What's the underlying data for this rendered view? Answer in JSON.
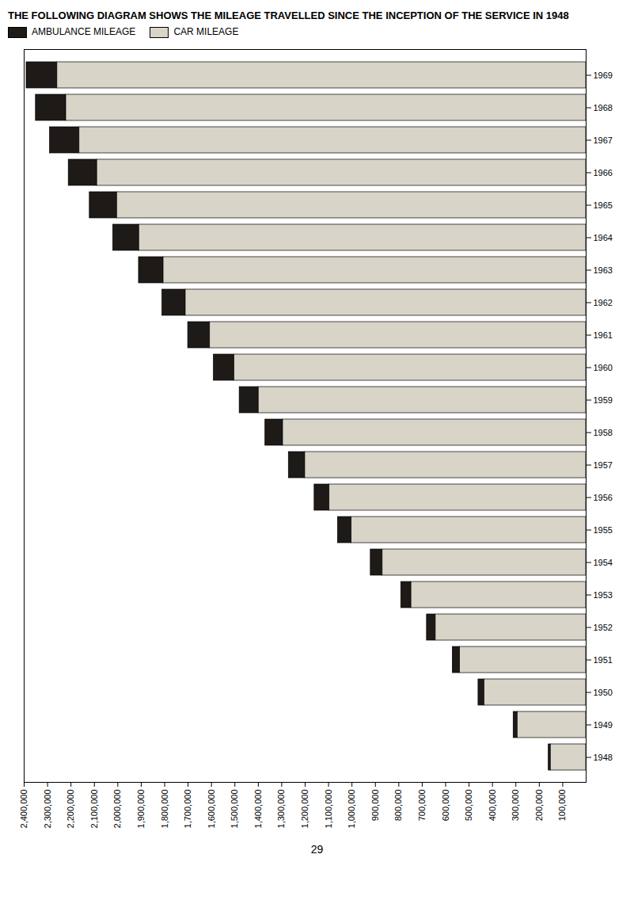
{
  "chart_data": {
    "type": "bar",
    "orientation": "horizontal",
    "stacked": true,
    "title": "THE FOLLOWING DIAGRAM SHOWS THE MILEAGE TRAVELLED SINCE THE INCEPTION OF THE SERVICE IN 1948",
    "categories": [
      "1948",
      "1949",
      "1950",
      "1951",
      "1952",
      "1953",
      "1954",
      "1955",
      "1956",
      "1957",
      "1958",
      "1959",
      "1960",
      "1961",
      "1962",
      "1963",
      "1964",
      "1965",
      "1966",
      "1967",
      "1968",
      "1969"
    ],
    "series": [
      {
        "name": "AMBULANCE MILEAGE",
        "color": "#1e1a17",
        "values": [
          8800,
          17050,
          25300,
          31350,
          37400,
          43450,
          50600,
          58300,
          63800,
          69850,
          75350,
          81400,
          87450,
          93500,
          99550,
          105050,
          111100,
          116600,
          121550,
          125950,
          129250,
          131450
        ]
      },
      {
        "name": "CAR MILEAGE",
        "color": "#d8d4c8",
        "values": [
          151200,
          292950,
          434700,
          538650,
          642600,
          746550,
          869400,
          1001700,
          1096200,
          1200150,
          1294650,
          1398600,
          1502550,
          1606500,
          1710450,
          1804950,
          1908900,
          2003400,
          2088450,
          2164050,
          2220750,
          2258550
        ]
      }
    ],
    "xlim": [
      2400000,
      0
    ],
    "xticks": [
      {
        "value": 100000,
        "label": "100,000"
      },
      {
        "value": 200000,
        "label": "200,000"
      },
      {
        "value": 300000,
        "label": "300,000"
      },
      {
        "value": 400000,
        "label": "400,000"
      },
      {
        "value": 500000,
        "label": "500,000"
      },
      {
        "value": 600000,
        "label": "600,000"
      },
      {
        "value": 700000,
        "label": "700,000"
      },
      {
        "value": 800000,
        "label": "800,000"
      },
      {
        "value": 900000,
        "label": "900,000"
      },
      {
        "value": 1000000,
        "label": "1,000,000"
      },
      {
        "value": 1100000,
        "label": "1,100,000"
      },
      {
        "value": 1200000,
        "label": "1,200,000"
      },
      {
        "value": 1300000,
        "label": "1,300,000"
      },
      {
        "value": 1400000,
        "label": "1,400,000"
      },
      {
        "value": 1500000,
        "label": "1,500,000"
      },
      {
        "value": 1600000,
        "label": "1,600,000"
      },
      {
        "value": 1700000,
        "label": "1,700,000"
      },
      {
        "value": 1800000,
        "label": "1,800,000"
      },
      {
        "value": 1900000,
        "label": "1,900,000"
      },
      {
        "value": 2000000,
        "label": "2,000,000"
      },
      {
        "value": 2100000,
        "label": "2,100,000"
      },
      {
        "value": 2200000,
        "label": "2,200,000"
      },
      {
        "value": 2300000,
        "label": "2,300,000"
      },
      {
        "value": 2400000,
        "label": "2,400,000"
      }
    ],
    "grid": false,
    "legend": "top",
    "annotations": [
      "29"
    ]
  }
}
